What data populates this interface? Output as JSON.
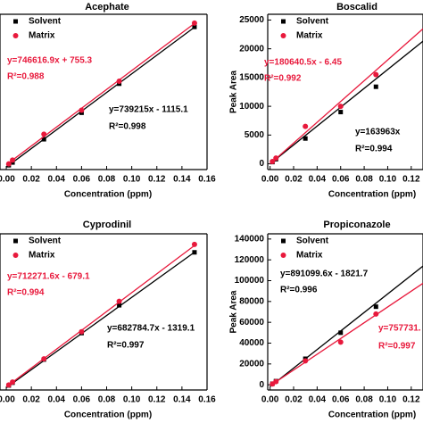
{
  "chart_data": [
    {
      "type": "scatter",
      "title": "Acephate",
      "xlabel": "Concentration (ppm)",
      "x": [
        0.002,
        0.005,
        0.03,
        0.06,
        0.09,
        0.15
      ],
      "series": [
        {
          "name": "Solvent",
          "color": "#000000",
          "marker": "square",
          "values": [
            400,
            2600,
            21000,
            42000,
            65000,
            110000
          ],
          "fit": {
            "x": [
              0,
              0.15
            ],
            "values": [
              -1115,
              109767
            ]
          }
        },
        {
          "name": "Matrix",
          "color": "#e8193c",
          "marker": "circle",
          "values": [
            1500,
            4500,
            25000,
            44000,
            67000,
            113000
          ],
          "fit": {
            "x": [
              0,
              0.15
            ],
            "values": [
              755,
              112748
            ]
          }
        }
      ],
      "xlim": [
        -0.005,
        0.16
      ],
      "ylim": [
        -3000,
        120000
      ],
      "xticks": [
        {
          "value": 0,
          "label": "0.00"
        },
        {
          "value": 0.02,
          "label": "0.02"
        },
        {
          "value": 0.04,
          "label": "0.04"
        },
        {
          "value": 0.06,
          "label": "0.06"
        },
        {
          "value": 0.08,
          "label": "0.08"
        },
        {
          "value": 0.1,
          "label": "0.10"
        },
        {
          "value": 0.12,
          "label": "0.12"
        },
        {
          "value": 0.14,
          "label": "0.14"
        },
        {
          "value": 0.16,
          "label": "0.16"
        }
      ],
      "annotations": [
        {
          "text": "y=746616.9x + 755.3",
          "color": "#e8193c"
        },
        {
          "text": "R²=0.988",
          "color": "#e8193c"
        },
        {
          "text": "y=739215x - 1115.1",
          "color": "#000000"
        },
        {
          "text": "R²=0.998",
          "color": "#000000"
        }
      ]
    },
    {
      "type": "scatter",
      "title": "Boscalid",
      "xlabel": "Concentration (ppm)",
      "ylabel": "Peak Area",
      "x": [
        0.002,
        0.005,
        0.03,
        0.06,
        0.09
      ],
      "series": [
        {
          "name": "Solvent",
          "color": "#000000",
          "marker": "square",
          "values": [
            300,
            800,
            4400,
            9000,
            13400
          ],
          "fit": {
            "x": [
              0,
              0.13
            ],
            "values": [
              0,
              21315
            ]
          }
        },
        {
          "name": "Matrix",
          "color": "#e8193c",
          "marker": "circle",
          "values": [
            400,
            1000,
            6500,
            10000,
            15500
          ],
          "fit": {
            "x": [
              0,
              0.13
            ],
            "values": [
              -6,
              23477
            ]
          }
        }
      ],
      "xlim": [
        -0.002,
        0.13
      ],
      "ylim": [
        -1000,
        26000
      ],
      "xticks": [
        {
          "value": 0,
          "label": "0.00"
        },
        {
          "value": 0.02,
          "label": "0.02"
        },
        {
          "value": 0.04,
          "label": "0.04"
        },
        {
          "value": 0.06,
          "label": "0.06"
        },
        {
          "value": 0.08,
          "label": "0.08"
        },
        {
          "value": 0.1,
          "label": "0.10"
        },
        {
          "value": 0.12,
          "label": "0.12"
        }
      ],
      "yticks": [
        0,
        5000,
        10000,
        15000,
        20000,
        25000
      ],
      "annotations": [
        {
          "text": "y=180640.5x - 6.45",
          "color": "#e8193c"
        },
        {
          "text": "R²=0.992",
          "color": "#e8193c"
        },
        {
          "text": "y=163963x",
          "color": "#000000"
        },
        {
          "text": "R²=0.994",
          "color": "#000000"
        }
      ]
    },
    {
      "type": "scatter",
      "title": "Cyprodinil",
      "xlabel": "Concentration (ppm)",
      "x": [
        0.002,
        0.005,
        0.03,
        0.06,
        0.09,
        0.15
      ],
      "series": [
        {
          "name": "Solvent",
          "color": "#000000",
          "marker": "square",
          "values": [
            400,
            2500,
            20000,
            40000,
            61000,
            101000
          ],
          "fit": {
            "x": [
              0,
              0.15
            ],
            "values": [
              -1319,
              101098
            ]
          }
        },
        {
          "name": "Matrix",
          "color": "#e8193c",
          "marker": "circle",
          "values": [
            800,
            3000,
            20500,
            41000,
            64000,
            107000
          ],
          "fit": {
            "x": [
              0,
              0.15
            ],
            "values": [
              -679,
              106161
            ]
          }
        }
      ],
      "xlim": [
        -0.005,
        0.16
      ],
      "ylim": [
        -3000,
        115000
      ],
      "xticks": [
        {
          "value": 0,
          "label": "0.00"
        },
        {
          "value": 0.02,
          "label": "0.02"
        },
        {
          "value": 0.04,
          "label": "0.04"
        },
        {
          "value": 0.06,
          "label": "0.06"
        },
        {
          "value": 0.08,
          "label": "0.08"
        },
        {
          "value": 0.1,
          "label": "0.10"
        },
        {
          "value": 0.12,
          "label": "0.12"
        },
        {
          "value": 0.14,
          "label": "0.14"
        },
        {
          "value": 0.16,
          "label": "0.16"
        }
      ],
      "annotations": [
        {
          "text": "y=712271.6x - 679.1",
          "color": "#e8193c"
        },
        {
          "text": "R²=0.994",
          "color": "#e8193c"
        },
        {
          "text": "y=682784.7x - 1319.1",
          "color": "#000000"
        },
        {
          "text": "R²=0.997",
          "color": "#000000"
        }
      ]
    },
    {
      "type": "scatter",
      "title": "Propiconazole",
      "xlabel": "Concentration (ppm)",
      "ylabel": "Peak Area",
      "x": [
        0.002,
        0.005,
        0.03,
        0.06,
        0.09
      ],
      "series": [
        {
          "name": "Solvent",
          "color": "#000000",
          "marker": "square",
          "values": [
            1000,
            3500,
            25000,
            50000,
            75000
          ],
          "fit": {
            "x": [
              0,
              0.13
            ],
            "values": [
              -1822,
              114021
            ]
          }
        },
        {
          "name": "Matrix",
          "color": "#e8193c",
          "marker": "circle",
          "values": [
            800,
            3000,
            23000,
            41000,
            68000
          ],
          "fit": {
            "x": [
              0,
              0.13
            ],
            "values": [
              -1000,
              97500
            ]
          }
        }
      ],
      "xlim": [
        -0.002,
        0.13
      ],
      "ylim": [
        -5000,
        145000
      ],
      "xticks": [
        {
          "value": 0,
          "label": "0.00"
        },
        {
          "value": 0.02,
          "label": "0.02"
        },
        {
          "value": 0.04,
          "label": "0.04"
        },
        {
          "value": 0.06,
          "label": "0.06"
        },
        {
          "value": 0.08,
          "label": "0.08"
        },
        {
          "value": 0.1,
          "label": "0.10"
        },
        {
          "value": 0.12,
          "label": "0.12"
        }
      ],
      "yticks": [
        0,
        20000,
        40000,
        60000,
        80000,
        100000,
        120000,
        140000
      ],
      "annotations": [
        {
          "text": "y=891099.6x - 1821.7",
          "color": "#000000"
        },
        {
          "text": "R²=0.996",
          "color": "#000000"
        },
        {
          "text": "y=757731.",
          "color": "#e8193c"
        },
        {
          "text": "R²=0.997",
          "color": "#e8193c"
        }
      ]
    }
  ]
}
